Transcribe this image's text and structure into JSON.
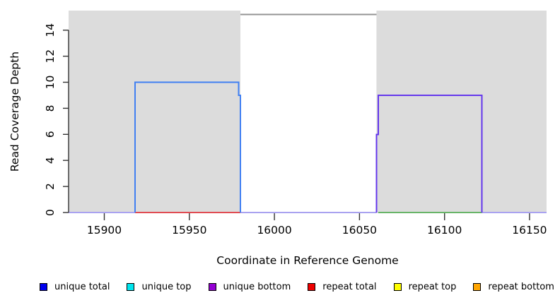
{
  "chart_data": {
    "type": "line",
    "title": "",
    "xlabel": "Coordinate in Reference Genome",
    "ylabel": "Read Coverage Depth",
    "xlim": [
      15879,
      16160
    ],
    "ylim": [
      0,
      15.5
    ],
    "x_ticks": [
      15900,
      15950,
      16000,
      16050,
      16100,
      16150
    ],
    "y_ticks": [
      0,
      2,
      4,
      6,
      8,
      10,
      12,
      14
    ],
    "grid": "off",
    "legend_position": "bottom",
    "shade_color": "#DCDCDC",
    "shaded_regions": [
      {
        "name": "shaded-region-left",
        "x0": 15879,
        "x1": 15980
      },
      {
        "name": "shaded-region-right",
        "x0": 16060,
        "x1": 16160
      }
    ],
    "series": [
      {
        "name": "baseline-left",
        "color": "#A9A2F0",
        "width": 2,
        "points": [
          [
            15879,
            0
          ],
          [
            15918,
            0
          ]
        ]
      },
      {
        "name": "baseline-middle",
        "color": "#A9A2F0",
        "width": 2,
        "points": [
          [
            15980,
            0
          ],
          [
            16060,
            0
          ]
        ]
      },
      {
        "name": "baseline-right",
        "color": "#A9A2F0",
        "width": 2,
        "points": [
          [
            16122,
            0
          ],
          [
            16160,
            0
          ]
        ]
      },
      {
        "name": "repeat-total-zero",
        "color": "#E04B52",
        "width": 1.6,
        "points": [
          [
            15918,
            0
          ],
          [
            15980,
            0
          ]
        ]
      },
      {
        "name": "repeat-zero-right",
        "color": "#68B468",
        "width": 1.6,
        "points": [
          [
            16061,
            0
          ],
          [
            16122,
            0
          ]
        ]
      },
      {
        "name": "total-clipped-top",
        "color": "#949494",
        "width": 2,
        "points": [
          [
            15980,
            15.2
          ],
          [
            16060,
            15.2
          ]
        ]
      },
      {
        "name": "unique-coverage-left",
        "color": "#4180F2",
        "width": 2,
        "points": [
          [
            15918,
            0
          ],
          [
            15918,
            10
          ],
          [
            15979,
            10
          ],
          [
            15979,
            9
          ],
          [
            15980,
            9
          ],
          [
            15980,
            0
          ]
        ]
      },
      {
        "name": "unique-coverage-right",
        "color": "#6437EC",
        "width": 2,
        "points": [
          [
            16060,
            0
          ],
          [
            16060,
            6
          ],
          [
            16061,
            6
          ],
          [
            16061,
            9
          ],
          [
            16122,
            9
          ],
          [
            16122,
            0
          ]
        ]
      }
    ],
    "legend": [
      {
        "label": "unique total",
        "color": "#0000EE"
      },
      {
        "label": "unique top",
        "color": "#00E5EE"
      },
      {
        "label": "unique bottom",
        "color": "#9400D3"
      },
      {
        "label": "repeat total",
        "color": "#EE0000"
      },
      {
        "label": "repeat top",
        "color": "#FFFF00"
      },
      {
        "label": "repeat bottom",
        "color": "#FFA500"
      }
    ]
  }
}
